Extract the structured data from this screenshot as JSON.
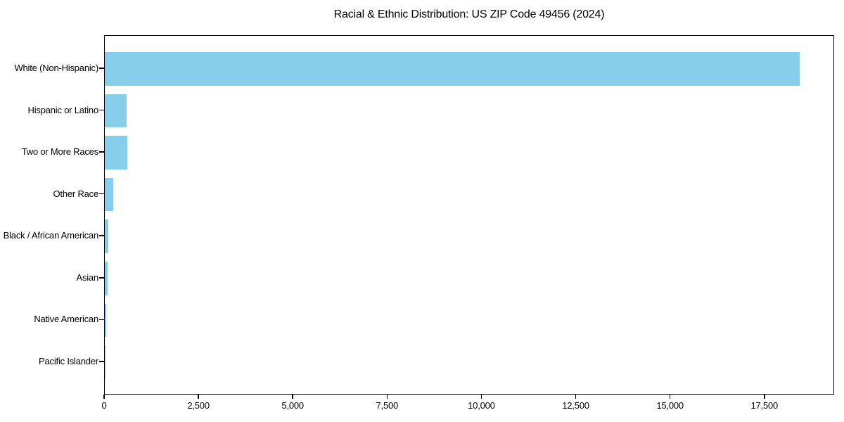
{
  "figure": {
    "background": "#ffffff"
  },
  "chart_data": {
    "type": "bar",
    "orientation": "horizontal",
    "title": "Racial & Ethnic Distribution: US ZIP Code 49456 (2024)",
    "categories": [
      "White (Non-Hispanic)",
      "Hispanic or Latino",
      "Two or More Races",
      "Other Race",
      "Black / African American",
      "Asian",
      "Native American",
      "Pacific Islander"
    ],
    "values": [
      18410,
      570,
      590,
      225,
      100,
      70,
      30,
      4
    ],
    "xlabel": "",
    "ylabel": "",
    "xlim": [
      0,
      19350
    ],
    "x_ticks": [
      0,
      2500,
      5000,
      7500,
      10000,
      12500,
      15000,
      17500
    ],
    "x_tick_labels": [
      "0",
      "2,500",
      "5,000",
      "7,500",
      "10,000",
      "12,500",
      "15,000",
      "17,500"
    ],
    "grid": false,
    "legend": null,
    "style": {
      "bar_color": "#87CEEB",
      "axis_color": "#000000",
      "text_color": "#000000"
    }
  }
}
